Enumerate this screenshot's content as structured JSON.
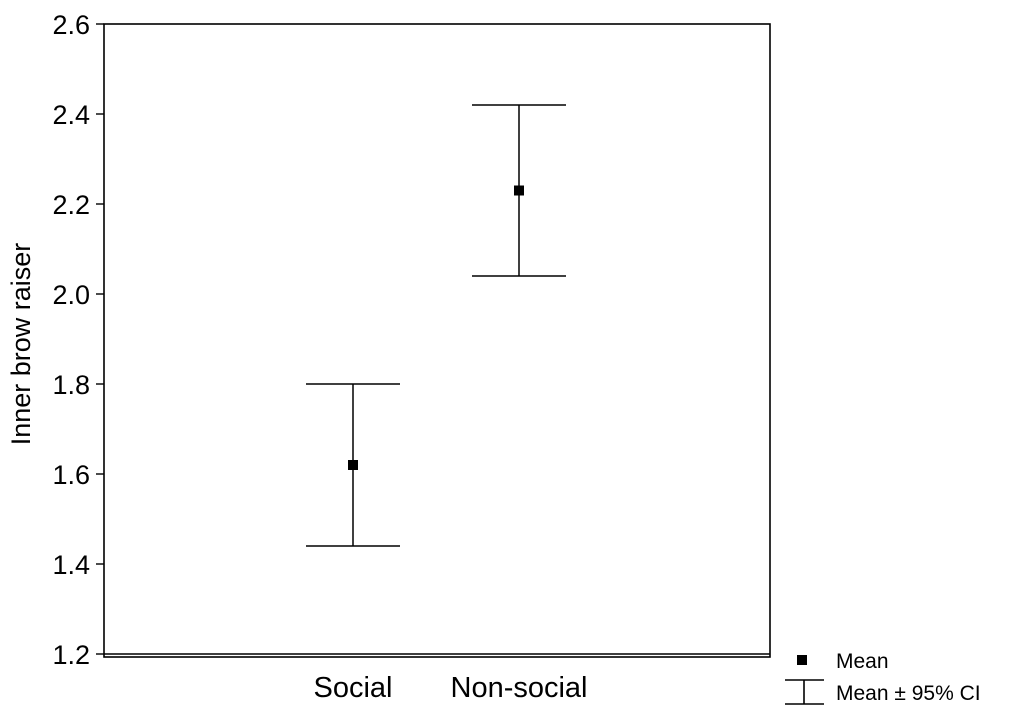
{
  "chart_data": {
    "type": "scatter",
    "subtype": "mean-with-95ci-error-bars",
    "title": "",
    "xlabel": "",
    "ylabel": "Inner brow raiser",
    "ylim": [
      1.2,
      2.6
    ],
    "yticks": [
      "1.2",
      "1.4",
      "1.6",
      "1.8",
      "2.0",
      "2.2",
      "2.4",
      "2.6"
    ],
    "grid": false,
    "categories": [
      "Social",
      "Non-social"
    ],
    "series": [
      {
        "name": "Mean",
        "values": [
          1.62,
          2.23
        ],
        "ci_lower": [
          1.44,
          2.04
        ],
        "ci_upper": [
          1.8,
          2.42
        ]
      }
    ],
    "legend": {
      "position": "bottom-right-outside",
      "entries": [
        {
          "label": "Mean",
          "marker": "square"
        },
        {
          "label": "Mean ± 95% CI",
          "marker": "error-bar"
        }
      ]
    },
    "colors": {
      "marker": "#000000",
      "line": "#000000"
    }
  }
}
